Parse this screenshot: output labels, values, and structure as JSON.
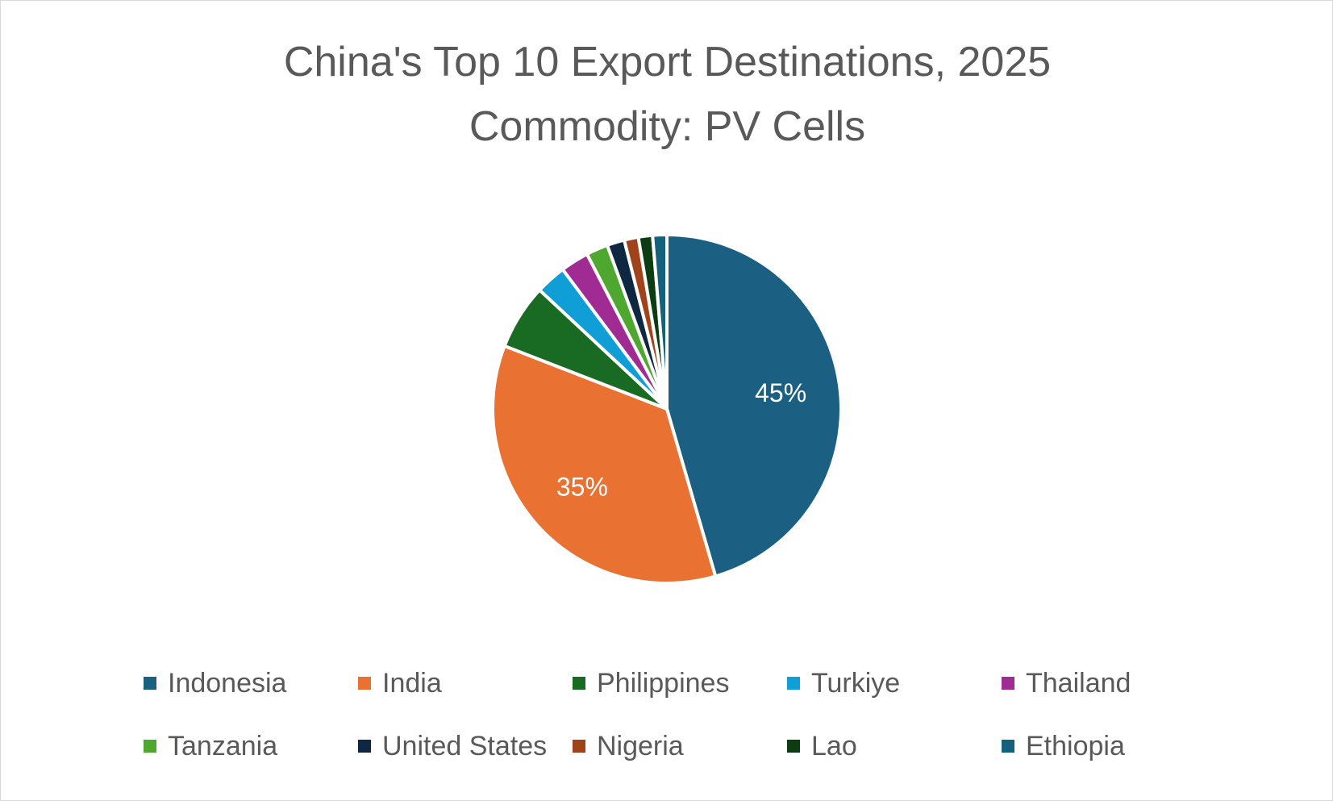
{
  "chart_data": {
    "type": "pie",
    "title": "China's Top 10 Export Destinations, 2025",
    "subtitle": "Commodity: PV Cells",
    "legend_position": "bottom",
    "slices": [
      {
        "name": "Indonesia",
        "value": 45.0,
        "color": "#1b5f82",
        "label": "45%"
      },
      {
        "name": "India",
        "value": 35.0,
        "color": "#e97132",
        "label": "35%"
      },
      {
        "name": "Philippines",
        "value": 6.0,
        "color": "#196b24",
        "label": ""
      },
      {
        "name": "Turkiye",
        "value": 2.8,
        "color": "#0f9ed5",
        "label": ""
      },
      {
        "name": "Thailand",
        "value": 2.6,
        "color": "#a02b93",
        "label": ""
      },
      {
        "name": "Tanzania",
        "value": 2.0,
        "color": "#4ea72e",
        "label": ""
      },
      {
        "name": "United States",
        "value": 1.6,
        "color": "#0e2841",
        "label": ""
      },
      {
        "name": "Nigeria",
        "value": 1.3,
        "color": "#a0431a",
        "label": ""
      },
      {
        "name": "Lao",
        "value": 1.3,
        "color": "#0c3d12",
        "label": ""
      },
      {
        "name": "Ethiopia",
        "value": 1.3,
        "color": "#14617e",
        "label": ""
      }
    ]
  }
}
